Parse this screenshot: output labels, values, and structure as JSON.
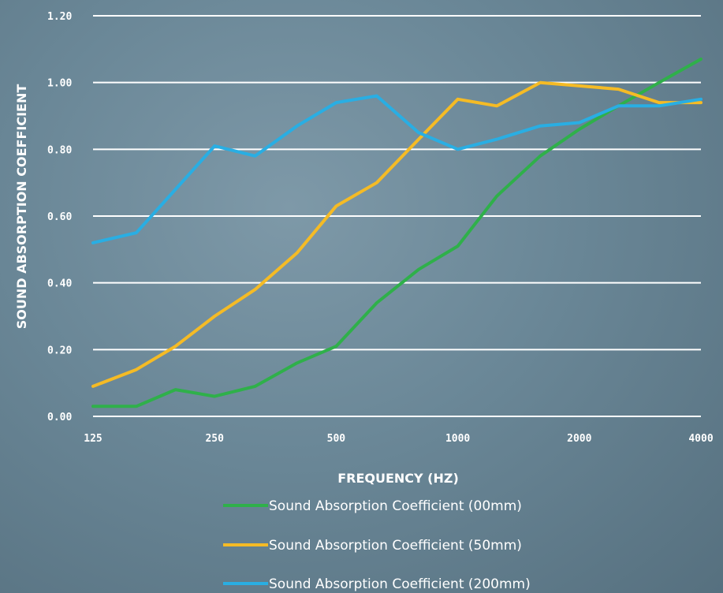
{
  "chart_data": {
    "type": "line",
    "xlabel": "FREQUENCY (HZ)",
    "ylabel": "SOUND ABSORPTION COEFFICIENT",
    "x_scale": "log2",
    "x_ticks": [
      125,
      250,
      500,
      1000,
      2000,
      4000
    ],
    "x_tick_labels": [
      "125",
      "250",
      "500",
      "1000",
      "2000",
      "4000"
    ],
    "y_ticks": [
      0.0,
      0.2,
      0.4,
      0.6,
      0.8,
      1.0,
      1.2
    ],
    "y_tick_labels": [
      "0.00",
      "0.20",
      "0.40",
      "0.60",
      "0.80",
      "1.00",
      "1.20"
    ],
    "ylim": [
      0,
      1.2
    ],
    "xlim": [
      125,
      4000
    ],
    "grid": true,
    "legend_placement": "bottom",
    "x": [
      125,
      160,
      200,
      250,
      315,
      400,
      500,
      630,
      800,
      1000,
      1250,
      1600,
      2000,
      2500,
      3150,
      4000
    ],
    "series": [
      {
        "name": "Sound Absorption Coefficient (00mm)",
        "color": "#2fb04a",
        "values": [
          0.03,
          0.03,
          0.08,
          0.06,
          0.09,
          0.16,
          0.21,
          0.34,
          0.44,
          0.51,
          0.66,
          0.78,
          0.86,
          0.93,
          1.0,
          1.07
        ]
      },
      {
        "name": "Sound Absorption Coefficient (50mm)",
        "color": "#f5bb25",
        "values": [
          0.09,
          0.14,
          0.21,
          0.3,
          0.38,
          0.49,
          0.63,
          0.7,
          0.83,
          0.95,
          0.93,
          1.0,
          0.99,
          0.98,
          0.94,
          0.94
        ]
      },
      {
        "name": "Sound Absorption Coefficient (200mm)",
        "color": "#29aee3",
        "values": [
          0.52,
          0.55,
          0.68,
          0.81,
          0.78,
          0.87,
          0.94,
          0.96,
          0.85,
          0.8,
          0.83,
          0.87,
          0.88,
          0.93,
          0.93,
          0.95
        ]
      }
    ]
  }
}
